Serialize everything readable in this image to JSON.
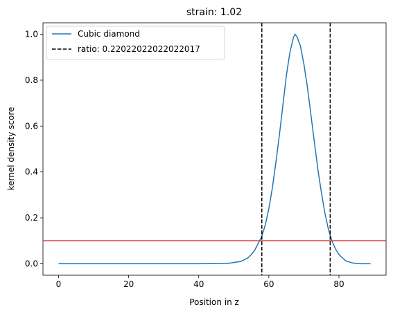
{
  "chart_data": {
    "type": "line",
    "title": "strain: 1.02",
    "xlabel": "Position in z",
    "ylabel": "kernel density score",
    "xlim": [
      -4.45,
      93.45
    ],
    "ylim": [
      -0.05,
      1.05
    ],
    "xticks": [
      0,
      20,
      40,
      60,
      80
    ],
    "yticks": [
      0.0,
      0.2,
      0.4,
      0.6,
      0.8,
      1.0
    ],
    "xtick_labels": [
      "0",
      "20",
      "40",
      "60",
      "80"
    ],
    "ytick_labels": [
      "0.0",
      "0.2",
      "0.4",
      "0.6",
      "0.8",
      "1.0"
    ],
    "grid": false,
    "legend_position": "upper-left",
    "series": [
      {
        "name": "Cubic diamond",
        "color": "#1f77b4",
        "x": [
          0,
          10,
          20,
          30,
          40,
          48,
          52,
          54,
          55,
          56,
          57,
          58,
          59,
          60,
          61,
          62,
          63,
          64,
          65,
          66,
          67,
          67.5,
          68,
          69,
          70,
          71,
          72,
          73,
          74,
          75,
          76,
          77,
          78,
          79,
          80,
          82,
          84,
          86,
          89
        ],
        "y": [
          0.0,
          0.0,
          0.0,
          0.0,
          0.0,
          0.001,
          0.01,
          0.025,
          0.04,
          0.06,
          0.09,
          0.12,
          0.17,
          0.24,
          0.33,
          0.44,
          0.56,
          0.69,
          0.82,
          0.92,
          0.985,
          1.0,
          0.99,
          0.95,
          0.87,
          0.77,
          0.65,
          0.53,
          0.41,
          0.31,
          0.22,
          0.15,
          0.1,
          0.065,
          0.04,
          0.012,
          0.003,
          0.0,
          0.0
        ]
      }
    ],
    "vlines": {
      "name": "ratio: 0.22022022022022017",
      "color": "#000000",
      "style": "dashed",
      "x": [
        58.0,
        77.5
      ]
    },
    "hline": {
      "y": 0.1,
      "color": "#d62728"
    }
  }
}
